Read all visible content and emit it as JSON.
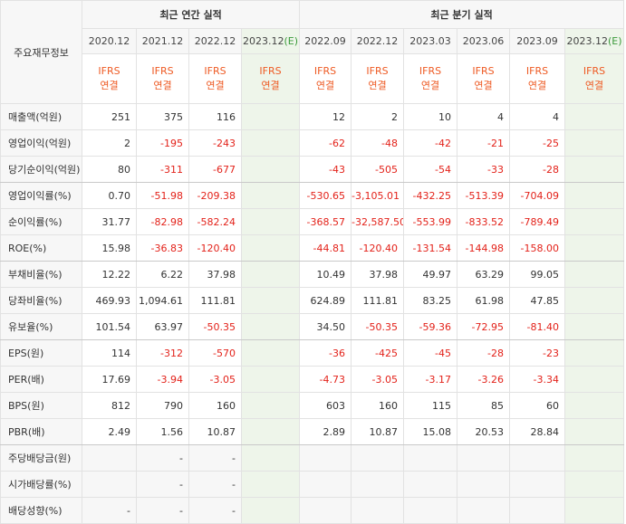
{
  "header": {
    "metric_title": "주요재무정보",
    "annual_title": "최근 연간 실적",
    "quarterly_title": "최근 분기 실적"
  },
  "periods": {
    "annual": [
      "2020.12",
      "2021.12",
      "2022.12",
      "2023.12"
    ],
    "quarterly": [
      "2022.09",
      "2022.12",
      "2023.03",
      "2023.06",
      "2023.09",
      "2023.12"
    ],
    "estimate_marker": "(E)"
  },
  "basis": {
    "line1": "IFRS",
    "line2": "연결"
  },
  "rows": [
    {
      "label": "매출액(억원)",
      "annual": [
        "251",
        "375",
        "116",
        ""
      ],
      "quarterly": [
        "12",
        "2",
        "10",
        "4",
        "4",
        ""
      ]
    },
    {
      "label": "영업이익(억원)",
      "annual": [
        "2",
        "-195",
        "-243",
        ""
      ],
      "quarterly": [
        "-62",
        "-48",
        "-42",
        "-21",
        "-25",
        ""
      ]
    },
    {
      "label": "당기순이익(억원)",
      "annual": [
        "80",
        "-311",
        "-677",
        ""
      ],
      "quarterly": [
        "-43",
        "-505",
        "-54",
        "-33",
        "-28",
        ""
      ]
    },
    {
      "label": "영업이익률(%)",
      "annual": [
        "0.70",
        "-51.98",
        "-209.38",
        ""
      ],
      "quarterly": [
        "-530.65",
        "-3,105.01",
        "-432.25",
        "-513.39",
        "-704.09",
        ""
      ]
    },
    {
      "label": "순이익률(%)",
      "annual": [
        "31.77",
        "-82.98",
        "-582.24",
        ""
      ],
      "quarterly": [
        "-368.57",
        "-32,587.50",
        "-553.99",
        "-833.52",
        "-789.49",
        ""
      ]
    },
    {
      "label": "ROE(%)",
      "annual": [
        "15.98",
        "-36.83",
        "-120.40",
        ""
      ],
      "quarterly": [
        "-44.81",
        "-120.40",
        "-131.54",
        "-144.98",
        "-158.00",
        ""
      ]
    },
    {
      "label": "부채비율(%)",
      "annual": [
        "12.22",
        "6.22",
        "37.98",
        ""
      ],
      "quarterly": [
        "10.49",
        "37.98",
        "49.97",
        "63.29",
        "99.05",
        ""
      ]
    },
    {
      "label": "당좌비율(%)",
      "annual": [
        "469.93",
        "1,094.61",
        "111.81",
        ""
      ],
      "quarterly": [
        "624.89",
        "111.81",
        "83.25",
        "61.98",
        "47.85",
        ""
      ]
    },
    {
      "label": "유보율(%)",
      "annual": [
        "101.54",
        "63.97",
        "-50.35",
        ""
      ],
      "quarterly": [
        "34.50",
        "-50.35",
        "-59.36",
        "-72.95",
        "-81.40",
        ""
      ]
    },
    {
      "label": "EPS(원)",
      "annual": [
        "114",
        "-312",
        "-570",
        ""
      ],
      "quarterly": [
        "-36",
        "-425",
        "-45",
        "-28",
        "-23",
        ""
      ]
    },
    {
      "label": "PER(배)",
      "annual": [
        "17.69",
        "-3.94",
        "-3.05",
        ""
      ],
      "quarterly": [
        "-4.73",
        "-3.05",
        "-3.17",
        "-3.26",
        "-3.34",
        ""
      ]
    },
    {
      "label": "BPS(원)",
      "annual": [
        "812",
        "790",
        "160",
        ""
      ],
      "quarterly": [
        "603",
        "160",
        "115",
        "85",
        "60",
        ""
      ]
    },
    {
      "label": "PBR(배)",
      "annual": [
        "2.49",
        "1.56",
        "10.87",
        ""
      ],
      "quarterly": [
        "2.89",
        "10.87",
        "15.08",
        "20.53",
        "28.84",
        ""
      ]
    },
    {
      "label": "주당배당금(원)",
      "annual": [
        "",
        "-",
        "-",
        ""
      ],
      "quarterly": [
        "",
        "",
        "",
        "",
        "",
        ""
      ]
    },
    {
      "label": "시가배당률(%)",
      "annual": [
        "",
        "-",
        "-",
        ""
      ],
      "quarterly": [
        "",
        "",
        "",
        "",
        "",
        ""
      ]
    },
    {
      "label": "배당성향(%)",
      "annual": [
        "-",
        "-",
        "-",
        ""
      ],
      "quarterly": [
        "",
        "",
        "",
        "",
        "",
        ""
      ]
    }
  ],
  "colors": {
    "negative": "#e3221a",
    "basis": "#ee5a23",
    "estimate_bg": "#eef5ea",
    "estimate_marker": "#3a9a3a"
  }
}
